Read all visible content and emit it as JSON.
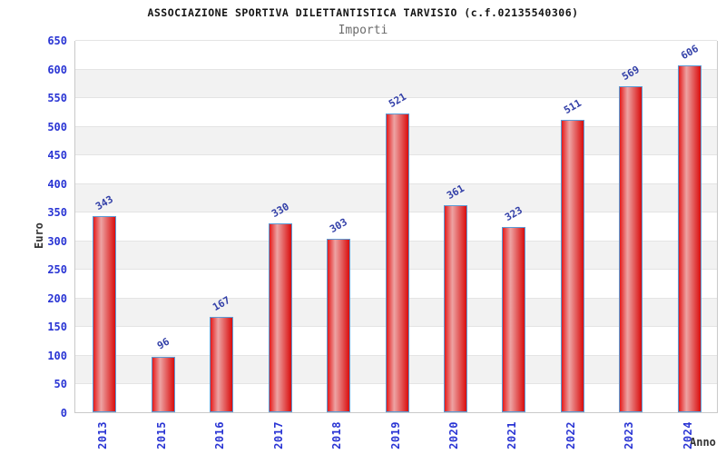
{
  "header": {
    "title": "ASSOCIAZIONE SPORTIVA DILETTANTISTICA TARVISIO (c.f.02135540306)",
    "subtitle": "Importi"
  },
  "chart_data": {
    "type": "bar",
    "title": "ASSOCIAZIONE SPORTIVA DILETTANTISTICA TARVISIO (c.f.02135540306)",
    "subtitle": "Importi",
    "categories": [
      "2013",
      "2015",
      "2016",
      "2017",
      "2018",
      "2019",
      "2020",
      "2021",
      "2022",
      "2023",
      "2024"
    ],
    "values": [
      343,
      96,
      167,
      330,
      303,
      521,
      361,
      323,
      511,
      569,
      606
    ],
    "xlabel": "Anno",
    "ylabel": "Euro",
    "ylim": [
      0,
      650
    ],
    "ytick_step": 50,
    "yticks": [
      0,
      50,
      100,
      150,
      200,
      250,
      300,
      350,
      400,
      450,
      500,
      550,
      600,
      650
    ],
    "grid": "horizontal gridlines with alternating gray/white 50-unit bands",
    "legend_position": "none",
    "colors": {
      "bar_fill_left": "#e41a1a",
      "bar_fill_mid": "#eda4a4",
      "bar_fill_right": "#d90d0d",
      "bar_border": "#5b9bd5",
      "tick_label": "#2a35d4",
      "value_label": "#3340a8",
      "band_gray": "#f2f2f2",
      "band_white": "#ffffff",
      "gridline": "#e4e4e4",
      "plot_border": "#c9c9c9",
      "title": "#141414",
      "subtitle": "#6b6b6b",
      "axis_title": "#333333"
    }
  }
}
